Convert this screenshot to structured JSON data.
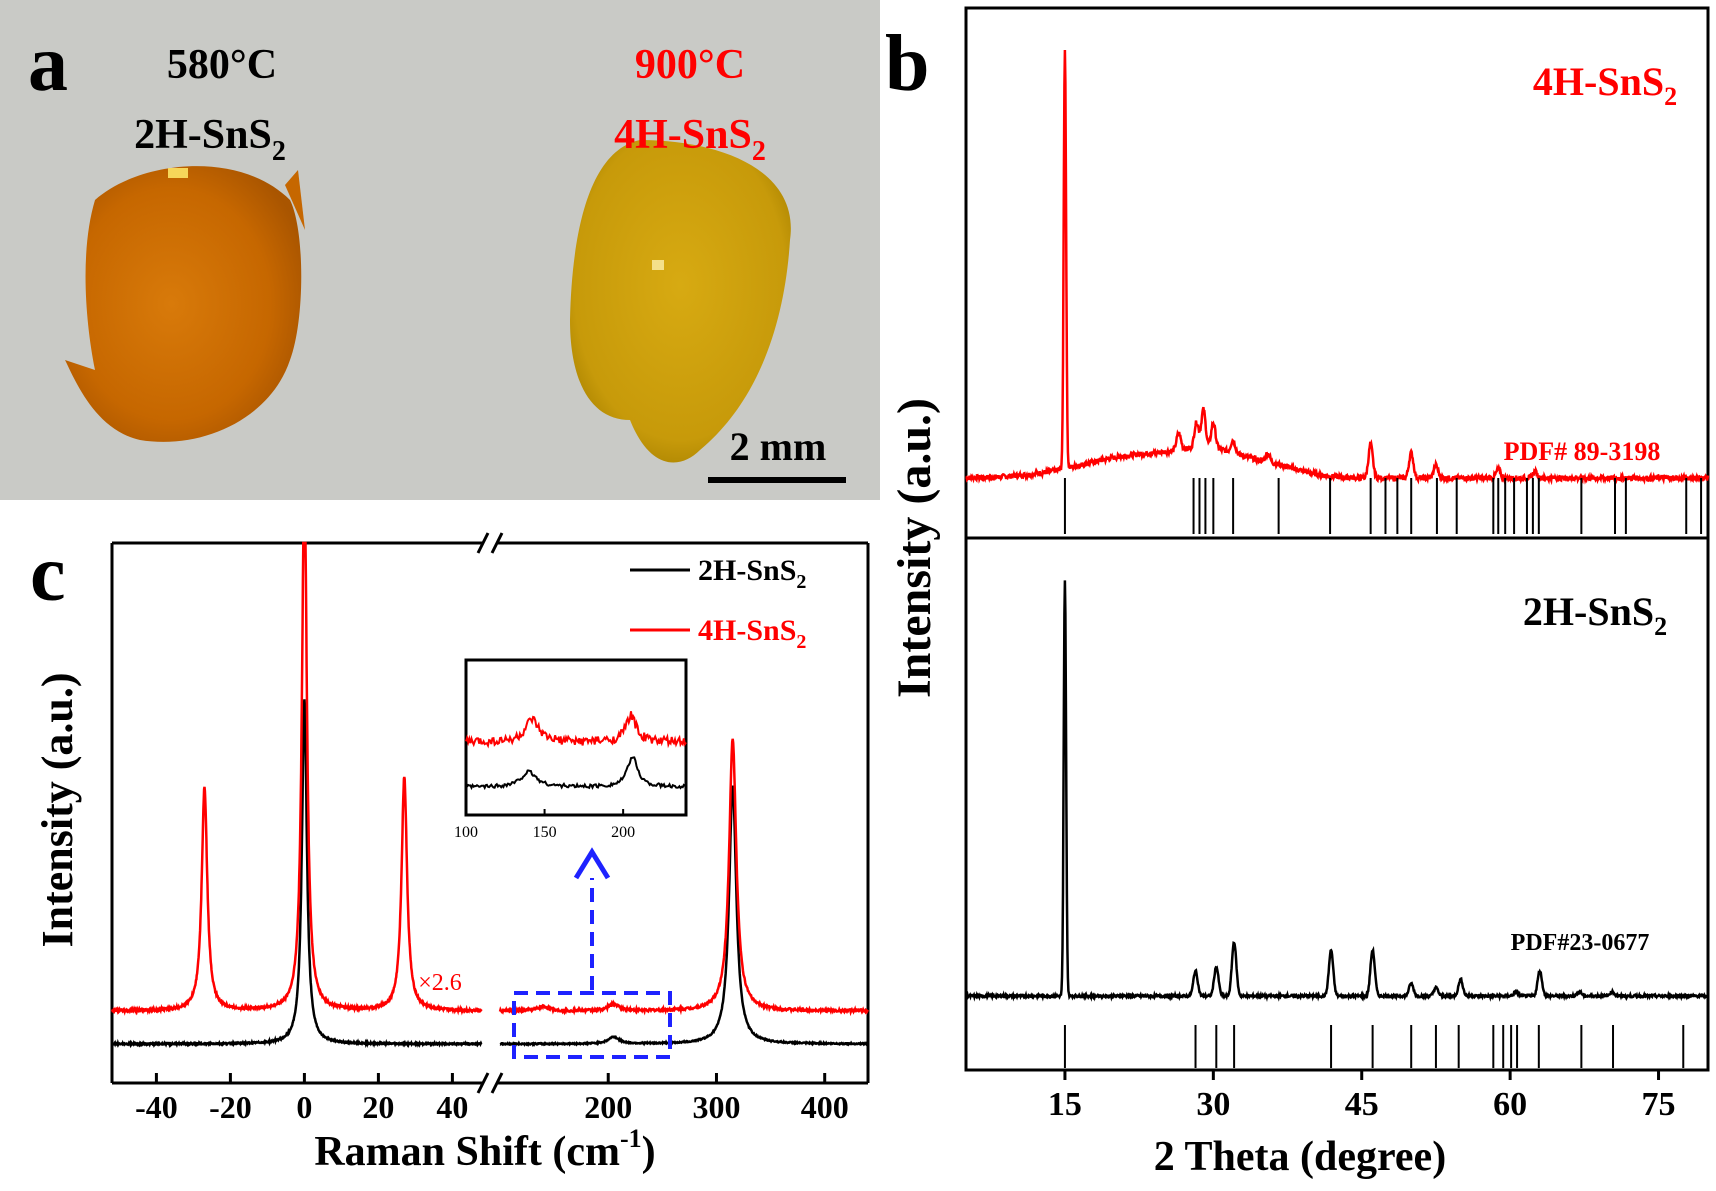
{
  "panel_a": {
    "label": "a",
    "left_temp": "580°C",
    "left_phase": "2H-SnS",
    "left_phase_sub": "2",
    "right_temp": "900°C",
    "right_phase": "4H-SnS",
    "right_phase_sub": "2",
    "scale_bar": "2 mm"
  },
  "chart_data": [
    {
      "id": "panel_b",
      "type": "line",
      "label": "b",
      "xlabel": "2 Theta (degree)",
      "ylabel": "Intensity (a.u.)",
      "xlim": [
        5,
        80
      ],
      "x_ticks": [
        15,
        30,
        45,
        60,
        75
      ],
      "sub_panels": [
        {
          "name": "4H-SnS2",
          "title": "4H-SnS",
          "title_sub": "2",
          "color": "#ff0000",
          "annotation": "PDF# 89-3198",
          "peaks": [
            [
              15.0,
              1.0
            ],
            [
              26.5,
              0.04
            ],
            [
              28.3,
              0.06
            ],
            [
              29.0,
              0.09
            ],
            [
              30.0,
              0.06
            ],
            [
              32.0,
              0.03
            ],
            [
              35.5,
              0.02
            ],
            [
              45.9,
              0.08
            ],
            [
              50.0,
              0.06
            ],
            [
              52.5,
              0.03
            ],
            [
              58.8,
              0.02
            ],
            [
              62.5,
              0.015
            ]
          ],
          "reference_lines": [
            15.0,
            28.0,
            28.6,
            29.2,
            30.0,
            32.0,
            36.6,
            41.8,
            45.9,
            47.4,
            48.6,
            50.0,
            52.6,
            54.6,
            58.3,
            58.8,
            59.5,
            60.4,
            61.7,
            62.3,
            62.9,
            67.2,
            70.6,
            71.7,
            77.8,
            79.3
          ]
        },
        {
          "name": "2H-SnS2",
          "title": "2H-SnS",
          "title_sub": "2",
          "color": "#000000",
          "annotation": "PDF#23-0677",
          "peaks": [
            [
              15.0,
              1.0
            ],
            [
              28.2,
              0.06
            ],
            [
              30.3,
              0.07
            ],
            [
              32.1,
              0.13
            ],
            [
              41.9,
              0.11
            ],
            [
              46.1,
              0.11
            ],
            [
              50.0,
              0.03
            ],
            [
              52.5,
              0.02
            ],
            [
              55.0,
              0.04
            ],
            [
              60.6,
              0.01
            ],
            [
              63.0,
              0.06
            ],
            [
              67.0,
              0.01
            ],
            [
              70.3,
              0.01
            ]
          ],
          "reference_lines": [
            15.0,
            28.2,
            30.3,
            32.1,
            41.9,
            46.1,
            50.0,
            52.5,
            54.8,
            58.3,
            59.3,
            60.1,
            60.7,
            62.9,
            67.2,
            70.4,
            77.5
          ]
        }
      ]
    },
    {
      "id": "panel_c",
      "type": "line",
      "label": "c",
      "xlabel": "Raman Shift (cm",
      "xlabel_sup": "-1",
      "xlabel_end": ")",
      "ylabel": "Intensity (a.u.)",
      "x_break": [
        50,
        100
      ],
      "x_ticks": [
        "-40",
        "-20",
        "0",
        "20",
        "40",
        "200",
        "300",
        "400"
      ],
      "scale_factor_label": "×2.6",
      "series": [
        {
          "name": "2H-SnS2",
          "legend": "2H-SnS",
          "legend_sub": "2",
          "color": "#000000",
          "peaks": [
            [
              0,
              1.0
            ],
            [
              205,
              0.02
            ],
            [
              315,
              0.75
            ]
          ]
        },
        {
          "name": "4H-SnS2",
          "legend": "4H-SnS",
          "legend_sub": "2",
          "color": "#ff0000",
          "peaks": [
            [
              -27,
              0.62
            ],
            [
              0,
              1.5
            ],
            [
              27,
              0.65
            ],
            [
              140,
              0.01
            ],
            [
              205,
              0.015
            ],
            [
              315,
              0.62
            ]
          ]
        }
      ],
      "inset": {
        "x_ticks": [
          "100",
          "150",
          "200"
        ],
        "xlim": [
          100,
          240
        ]
      }
    }
  ]
}
